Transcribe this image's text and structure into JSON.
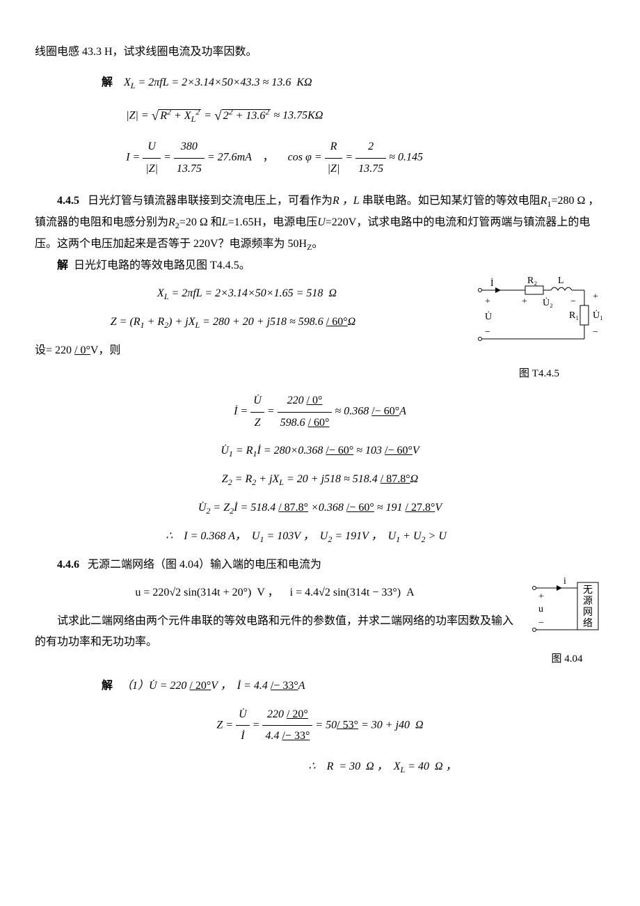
{
  "p1_intro": "线圈电感 43.3 H，试求线圈电流及功率因数。",
  "p1_solution_label": "解",
  "p1_eq1": "X<sub>L</sub> = 2πfL = 2×3.14×50×43.3 ≈ 13.6&nbsp;&nbsp;KΩ",
  "p1_eq2_lhs": "|Z| = ",
  "p1_eq2_rad1": "R<sup>2</sup> + X<sub>L</sub><sup>2</sup>",
  "p1_eq2_mid": " = ",
  "p1_eq2_rad2": "2<sup>2</sup> + 13.6<sup>2</sup>",
  "p1_eq2_rhs": " ≈ 13.75KΩ",
  "p1_eq3a_num": "U",
  "p1_eq3a_den": "|Z|",
  "p1_eq3b_num": "380",
  "p1_eq3b_den": "13.75",
  "p1_eq3_mid": " = 27.6mA",
  "p1_eq3c_lhs": "cos φ = ",
  "p1_eq3c_num1": "R",
  "p1_eq3c_den1": "|Z|",
  "p1_eq3c_num2": "2",
  "p1_eq3c_den2": "13.75",
  "p1_eq3c_rhs": " ≈ 0.145",
  "p2_label": "4.4.5",
  "p2_a": "日光灯管与镇流器串联接到交流电压上，可看作为",
  "p2_rl": "R ，L",
  "p2_a2": " 串联电路。如已知某灯管的等效电阻",
  "p2_r1": "R",
  "p2_r1sub": "1",
  "p2_r1val": "=280 Ω ，",
  "p2_b": "镇流器的电阻和电感分别为",
  "p2_r2": "R",
  "p2_r2sub": "2",
  "p2_r2val": "=20 Ω 和",
  "p2_l": "L",
  "p2_lval": "=1.65H，电源电压",
  "p2_u": "U",
  "p2_uval": "=220V，试求电路中的电流和灯管两端与镇流器上的电压。这两个电压加起来是否等于 220V？电源频率为 50H",
  "p2_hz": "Z",
  "p2_end": "。",
  "p2_sol_label": "解",
  "p2_sol_text": "日光灯电路的等效电路见图 T4.4.5。",
  "p2_eq1": "X<sub>L</sub> = 2πfL = 2×3.14×50×1.65 = 518&nbsp;&nbsp;Ω",
  "p2_eq2_a": "Z = (R<sub>1</sub> + R<sub>2</sub>) + jX<sub>L</sub> = 280 + 20 + j518 ≈ 598.6 ",
  "p2_eq2_ang": "/ 60°",
  "p2_eq2_b": "Ω",
  "p2_set_a": "设= 220 ",
  "p2_set_ang": "/ 0°",
  "p2_set_b": "V，则",
  "p2_eq3_lhs": "İ = ",
  "p2_eq3_num": "U̇",
  "p2_eq3_den": "Z",
  "p2_eq3_num2a": "220 ",
  "p2_eq3_num2b": "/ 0°",
  "p2_eq3_den2a": "598.6 ",
  "p2_eq3_den2b": "/ 60°",
  "p2_eq3_r1": " ≈ 0.368 ",
  "p2_eq3_r2": "/− 60°",
  "p2_eq3_r3": "A",
  "p2_eq4_a": "U̇<sub>1</sub> = R<sub>1</sub>İ = 280×0.368 ",
  "p2_eq4_ang1": "/− 60°",
  "p2_eq4_b": " ≈ 103 ",
  "p2_eq4_ang2": "/− 60°",
  "p2_eq4_c": "V",
  "p2_eq5_a": "Z<sub>2</sub> = R<sub>2</sub> + jX<sub>L</sub> = 20 + j518 ≈ 518.4 ",
  "p2_eq5_ang": "/ 87.8°",
  "p2_eq5_b": "Ω",
  "p2_eq6_a": "U̇<sub>2</sub> = Z<sub>2</sub>İ = 518.4 ",
  "p2_eq6_ang1": "/ 87.8°",
  "p2_eq6_b": " ×0.368 ",
  "p2_eq6_ang2": "/− 60°",
  "p2_eq6_c": " ≈ 191 ",
  "p2_eq6_ang3": "/ 27.8°",
  "p2_eq6_d": "V",
  "p2_conc": "∴&nbsp;&nbsp;&nbsp;&nbsp;I = 0.368 A，&nbsp;&nbsp;U<sub>1</sub> = 103V ，&nbsp;&nbsp;U<sub>2</sub> = 191V ，&nbsp;&nbsp;U<sub>1</sub> + U<sub>2</sub> &gt; U",
  "fig1_caption": "图 T4.4.5",
  "fig1": {
    "I": "İ",
    "R2": "R₂",
    "L": "L",
    "U2": "U̇₂",
    "U": "U̇",
    "R1": "R₁",
    "U1": "U̇₁",
    "plus": "+",
    "minus": "−"
  },
  "p3_label": "4.4.6",
  "p3_text": "无源二端网络（图 4.04）输入端的电压和电流为",
  "p3_eq_u": "u = 220√2 sin(314t + 20°)&nbsp;&nbsp;V ，&nbsp;&nbsp;&nbsp;&nbsp;i = 4.4√2 sin(314t − 33°)&nbsp;&nbsp;A",
  "p3_text2": "试求此二端网络由两个元件串联的等效电路和元件的参数值，并求二端网络的功率因数及输入的有功功率和无功功率。",
  "fig2_caption": "图 4.04",
  "fig2": {
    "i": "i",
    "u": "u",
    "box": "无\n源\n网\n络",
    "plus": "+",
    "minus": "−"
  },
  "p3_sol_label": "解",
  "p3_sol1_a": "（1）U̇ = 220 ",
  "p3_sol1_ang1": "/ 20°",
  "p3_sol1_b": "V ，&nbsp;&nbsp;İ = 4.4 ",
  "p3_sol1_ang2": "/− 33°",
  "p3_sol1_c": "A",
  "p3_eq_z_lhs": "Z = ",
  "p3_eq_z_num1": "U̇",
  "p3_eq_z_den1": "İ",
  "p3_eq_z_num2a": "220 ",
  "p3_eq_z_num2b": "/ 20°",
  "p3_eq_z_den2a": "4.4 ",
  "p3_eq_z_den2b": "/− 33°",
  "p3_eq_z_r1": " = 50",
  "p3_eq_z_r2": "/ 53°",
  "p3_eq_z_r3": " = 30 + j40&nbsp;&nbsp;Ω",
  "p3_conc": "∴&nbsp;&nbsp;&nbsp;&nbsp;R&nbsp;&nbsp;= 30&nbsp;&nbsp;Ω ，&nbsp;&nbsp;X<sub>L</sub> = 40&nbsp;&nbsp;Ω ，"
}
